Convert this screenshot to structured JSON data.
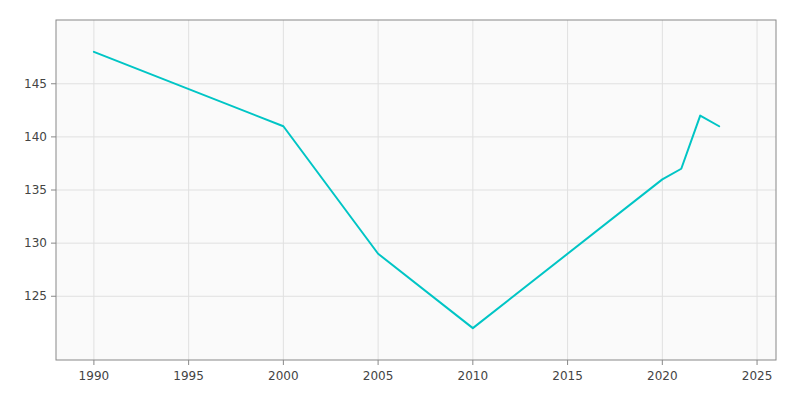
{
  "chart_data": {
    "type": "line",
    "x": [
      1990,
      2000,
      2005,
      2010,
      2020,
      2021,
      2022,
      2023
    ],
    "values": [
      148,
      141,
      129,
      122,
      136,
      137,
      142,
      141
    ],
    "color": "#00C5C5",
    "xlim": [
      1988,
      2026
    ],
    "ylim": [
      119,
      151
    ],
    "xticks": [
      1990,
      1995,
      2000,
      2005,
      2010,
      2015,
      2020,
      2025
    ],
    "yticks": [
      125,
      130,
      135,
      140,
      145
    ],
    "grid": true
  }
}
